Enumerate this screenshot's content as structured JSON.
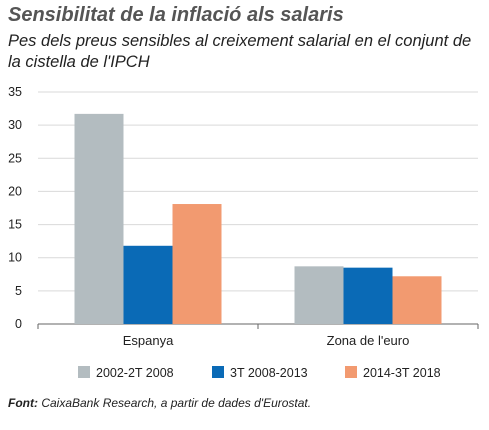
{
  "header": {
    "title": "Sensibilitat de la inflació als salaris",
    "subtitle": "Pes dels preus sensibles al creixement salarial en el conjunt de la cistella de l'IPCH"
  },
  "source": {
    "label": "Font:",
    "text": "CaixaBank Research, a partir de dades d'Eurostat."
  },
  "chart_data": {
    "type": "bar",
    "categories": [
      "Espanya",
      "Zona de l'euro"
    ],
    "series": [
      {
        "name": "2002-2T 2008",
        "values": [
          31.7,
          8.7
        ],
        "color": "#b3bcc0"
      },
      {
        "name": "3T 2008-2013",
        "values": [
          11.8,
          8.5
        ],
        "color": "#0a6ab6"
      },
      {
        "name": "2014-3T 2018",
        "values": [
          18.1,
          7.2
        ],
        "color": "#f29a70"
      }
    ],
    "ylim": [
      0,
      35
    ],
    "yticks": [
      "0",
      "5",
      "10",
      "15",
      "20",
      "25",
      "30",
      "35"
    ],
    "grid": true,
    "legend": "bottom",
    "grid_color": "#d9d9d9",
    "axis_color": "#666666"
  }
}
